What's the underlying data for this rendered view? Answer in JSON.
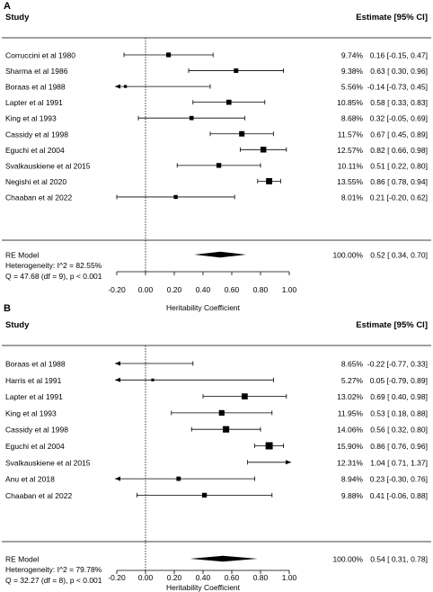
{
  "colors": {
    "ink": "#000000",
    "divider": "#000000"
  },
  "chart_data": [
    {
      "type": "forest",
      "panel": "A",
      "header_left": "Study",
      "header_right": "Estimate [95% CI]",
      "xlabel": "Heritability Coefficient",
      "xlim": [
        -0.2,
        1.0
      ],
      "ticks": [
        "-0.20",
        "0.00",
        "0.20",
        "0.40",
        "0.60",
        "0.80",
        "1.00"
      ],
      "reference_line": 0,
      "studies": [
        {
          "name": "Corruccini et al 1980",
          "weight": "9.74%",
          "est": 0.16,
          "lo": -0.15,
          "hi": 0.47,
          "label": "0.16 [-0.15, 0.47]"
        },
        {
          "name": "Sharma et al 1986",
          "weight": "9.38%",
          "est": 0.63,
          "lo": 0.3,
          "hi": 0.96,
          "label": "0.63 [ 0.30, 0.96]"
        },
        {
          "name": "Boraas et al 1988",
          "weight": "5.56%",
          "est": -0.14,
          "lo": -0.73,
          "hi": 0.45,
          "label": "-0.14 [-0.73, 0.45]"
        },
        {
          "name": "Lapter et al 1991",
          "weight": "10.85%",
          "est": 0.58,
          "lo": 0.33,
          "hi": 0.83,
          "label": "0.58 [ 0.33, 0.83]"
        },
        {
          "name": "King et al 1993",
          "weight": "8.68%",
          "est": 0.32,
          "lo": -0.05,
          "hi": 0.69,
          "label": "0.32 [-0.05, 0.69]"
        },
        {
          "name": "Cassidy et al 1998",
          "weight": "11.57%",
          "est": 0.67,
          "lo": 0.45,
          "hi": 0.89,
          "label": "0.67 [ 0.45, 0.89]"
        },
        {
          "name": "Eguchi et al 2004",
          "weight": "12.57%",
          "est": 0.82,
          "lo": 0.66,
          "hi": 0.98,
          "label": "0.82 [ 0.66, 0.98]"
        },
        {
          "name": "Svalkauskiene et al 2015",
          "weight": "10.11%",
          "est": 0.51,
          "lo": 0.22,
          "hi": 0.8,
          "label": "0.51 [ 0.22, 0.80]"
        },
        {
          "name": "Negishi et al 2020",
          "weight": "13.55%",
          "est": 0.86,
          "lo": 0.78,
          "hi": 0.94,
          "label": "0.86 [ 0.78, 0.94]"
        },
        {
          "name": "Chaaban et al 2022",
          "weight": "8.01%",
          "est": 0.21,
          "lo": -0.2,
          "hi": 0.62,
          "label": "0.21 [-0.20, 0.62]"
        }
      ],
      "summary": {
        "name": "RE Model",
        "weight": "100.00%",
        "est": 0.52,
        "lo": 0.34,
        "hi": 0.7,
        "label": "0.52 [ 0.34, 0.70]"
      },
      "heterogeneity": [
        "Heterogeneity: I^2 = 82.55%",
        "Q = 47.68 (df = 9), p < 0.001"
      ]
    },
    {
      "type": "forest",
      "panel": "B",
      "header_left": "Study",
      "header_right": "Estimate [95% CI]",
      "xlabel": "Heritability Coefficient",
      "xlim": [
        -0.2,
        1.0
      ],
      "ticks": [
        "-0.20",
        "0.00",
        "0.20",
        "0.40",
        "0.60",
        "0.80",
        "1.00"
      ],
      "reference_line": 0,
      "studies": [
        {
          "name": "Boraas et al 1988",
          "weight": "8.65%",
          "est": -0.22,
          "lo": -0.77,
          "hi": 0.33,
          "label": "-0.22 [-0.77, 0.33]"
        },
        {
          "name": "Harris et al 1991",
          "weight": "5.27%",
          "est": 0.05,
          "lo": -0.79,
          "hi": 0.89,
          "label": "0.05 [-0.79, 0.89]"
        },
        {
          "name": "Lapter et al 1991",
          "weight": "13.02%",
          "est": 0.69,
          "lo": 0.4,
          "hi": 0.98,
          "label": "0.69 [ 0.40, 0.98]"
        },
        {
          "name": "King et al 1993",
          "weight": "11.95%",
          "est": 0.53,
          "lo": 0.18,
          "hi": 0.88,
          "label": "0.53 [ 0.18, 0.88]"
        },
        {
          "name": "Cassidy et al 1998",
          "weight": "14.06%",
          "est": 0.56,
          "lo": 0.32,
          "hi": 0.8,
          "label": "0.56 [ 0.32, 0.80]"
        },
        {
          "name": "Eguchi et al 2004",
          "weight": "15.90%",
          "est": 0.86,
          "lo": 0.76,
          "hi": 0.96,
          "label": "0.86 [ 0.76, 0.96]"
        },
        {
          "name": "Svalkauskiene et al 2015",
          "weight": "12.31%",
          "est": 1.04,
          "lo": 0.71,
          "hi": 1.37,
          "label": "1.04 [ 0.71, 1.37]"
        },
        {
          "name": "Anu et al 2018",
          "weight": "8.94%",
          "est": 0.23,
          "lo": -0.3,
          "hi": 0.76,
          "label": "0.23 [-0.30, 0.76]"
        },
        {
          "name": "Chaaban et al 2022",
          "weight": "9.88%",
          "est": 0.41,
          "lo": -0.06,
          "hi": 0.88,
          "label": "0.41 [-0.06, 0.88]"
        }
      ],
      "summary": {
        "name": "RE Model",
        "weight": "100.00%",
        "est": 0.54,
        "lo": 0.31,
        "hi": 0.78,
        "label": "0.54 [ 0.31, 0.78]"
      },
      "heterogeneity": [
        "Heterogeneity: I^2 = 79.78%",
        "Q = 32.27 (df = 8), p < 0.001"
      ]
    }
  ]
}
